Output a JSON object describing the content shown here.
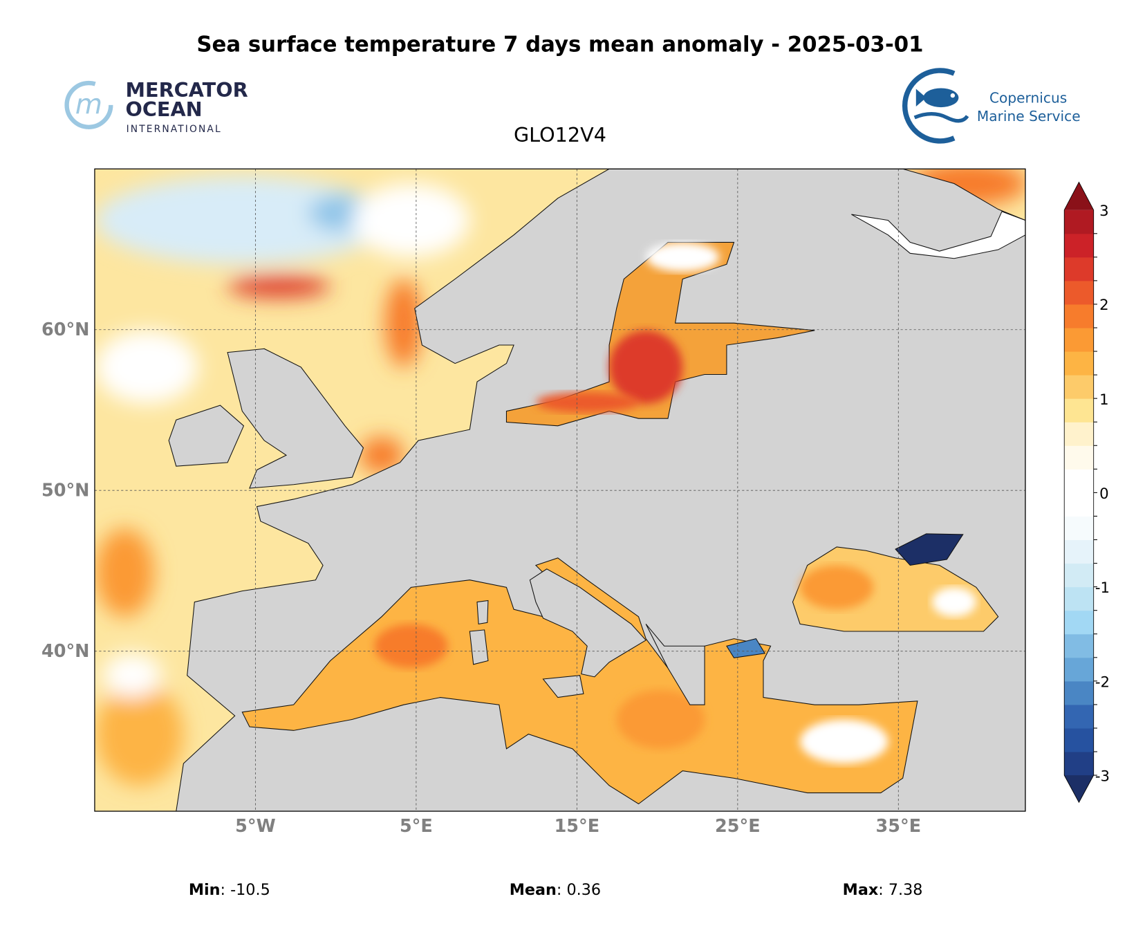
{
  "title": "Sea surface temperature 7 days mean anomaly - 2025-03-01",
  "subtitle": "GLO12V4",
  "logos": {
    "mercator": {
      "line1": "MERCATOR",
      "line2": "OCEAN",
      "line3": "INTERNATIONAL"
    },
    "copernicus": {
      "line1": "Copernicus",
      "line2": "Marine Service"
    }
  },
  "colors": {
    "land": "#d3d3d3",
    "axis_label": "#808080"
  },
  "chart_data": {
    "type": "heatmap",
    "title": "Sea surface temperature 7 days mean anomaly - 2025-03-01",
    "subtitle": "GLO12V4",
    "extent": {
      "lon": [
        -15,
        43
      ],
      "lat": [
        30,
        70
      ]
    },
    "x_ticks": [
      "5°W",
      "5°E",
      "15°E",
      "25°E",
      "35°E"
    ],
    "x_tick_values": [
      -5,
      5,
      15,
      25,
      35
    ],
    "y_ticks": [
      "60°N",
      "50°N",
      "40°N"
    ],
    "y_tick_values": [
      60,
      50,
      40
    ],
    "grid": true,
    "colorbar": {
      "range": [
        -3,
        3
      ],
      "step": 0.25,
      "extend": "both",
      "ticks": [
        "3",
        "2",
        "1",
        "0",
        "-1",
        "-2",
        "-3"
      ],
      "colors": [
        "#1c2f66",
        "#213f86",
        "#2652a0",
        "#3366b2",
        "#4a86c4",
        "#67a6d8",
        "#81bce4",
        "#a2d8f4",
        "#bde3f3",
        "#d2ebf5",
        "#e6f3fa",
        "#f6fbfd",
        "#ffffff",
        "#ffffff",
        "#fffaec",
        "#fff2cc",
        "#fee592",
        "#fdcb6a",
        "#fdb444",
        "#fb9a34",
        "#f77c2c",
        "#ec5a2b",
        "#dd3a2a",
        "#cc2228",
        "#b01a22",
        "#8a1119"
      ]
    },
    "stats": {
      "min": {
        "label": "Min",
        "value": ": -10.5"
      },
      "mean": {
        "label": "Mean",
        "value": ": 0.36"
      },
      "max": {
        "label": "Max",
        "value": ": 7.38"
      }
    }
  }
}
